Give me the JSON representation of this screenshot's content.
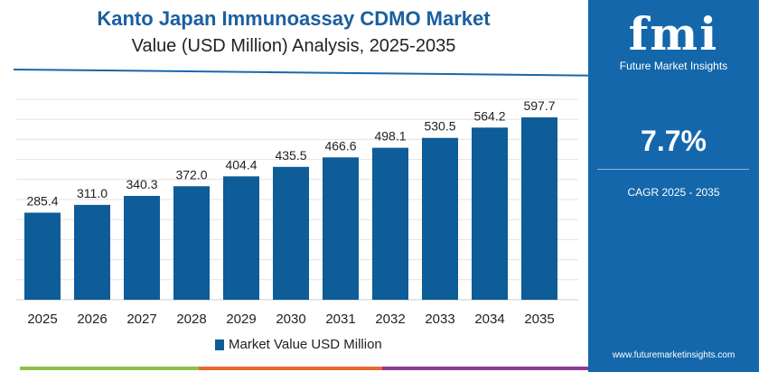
{
  "header": {
    "title": "Kanto Japan Immunoassay CDMO Market",
    "subtitle": "Value (USD Million) Analysis, 2025-2035"
  },
  "panel": {
    "logo": "fmi",
    "logo_text": "Future Market Insights",
    "cagr_value": "7.7%",
    "cagr_label": "CAGR 2025 - 2035",
    "url": "www.futuremarketinsights.com",
    "color": "#1467ab"
  },
  "chart_data": {
    "type": "bar",
    "categories": [
      "2025",
      "2026",
      "2027",
      "2028",
      "2029",
      "2030",
      "2031",
      "2032",
      "2033",
      "2034",
      "2035"
    ],
    "series": [
      {
        "name": "Market Value USD Million",
        "values": [
          285.4,
          311.0,
          340.3,
          372.0,
          404.4,
          435.5,
          466.6,
          498.1,
          530.5,
          564.2,
          597.7
        ],
        "labels": [
          "285.4",
          "311.0",
          "340.3",
          "372.0",
          "404.4",
          "435.5",
          "466.6",
          "498.1",
          "530.5",
          "564.2",
          "597.7"
        ],
        "color": "#0e5c98"
      }
    ],
    "ylim": [
      0,
      650
    ],
    "grid": true,
    "legend": "bottom"
  }
}
